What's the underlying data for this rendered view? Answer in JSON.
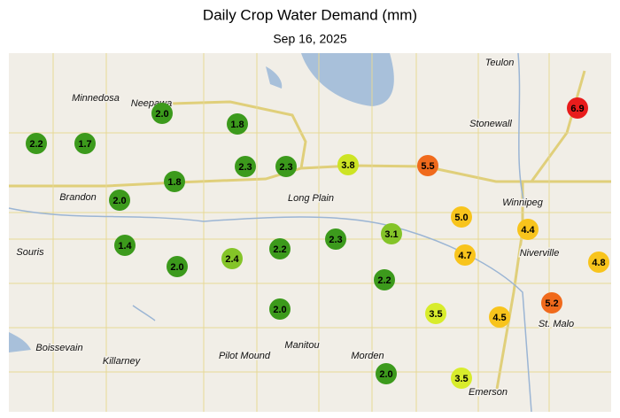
{
  "title": "Daily Crop Water Demand (mm)",
  "subtitle": "Sep 16, 2025",
  "places": [
    "Teulon",
    "Minnedosa",
    "Neepawa",
    "Stonewall",
    "Winnipeg",
    "Brandon",
    "Long Plain",
    "Souris",
    "Niverville",
    "St. Malo",
    "Boissevain",
    "Killarney",
    "Pilot Mound",
    "Manitou",
    "Morden",
    "Emerson"
  ],
  "stations": [
    {
      "value": 2.2,
      "color": "#3c9a1c"
    },
    {
      "value": 1.7,
      "color": "#3c9a1c"
    },
    {
      "value": 2,
      "label": "2.0",
      "color": "#3c9a1c"
    },
    {
      "value": 1.8,
      "color": "#3c9a1c"
    },
    {
      "value": 2.3,
      "color": "#3c9a1c"
    },
    {
      "value": 2.3,
      "color": "#3c9a1c"
    },
    {
      "value": 3.8,
      "color": "#cde424"
    },
    {
      "value": 5.5,
      "color": "#f06a1c"
    },
    {
      "value": 6.9,
      "color": "#e81c1c"
    },
    {
      "value": 1.8,
      "color": "#3c9a1c"
    },
    {
      "value": 2,
      "label": "2.0",
      "color": "#3c9a1c"
    },
    {
      "value": 5,
      "label": "5.0",
      "color": "#f8c41c"
    },
    {
      "value": 4.4,
      "color": "#f8c41c"
    },
    {
      "value": 1.4,
      "color": "#3c9a1c"
    },
    {
      "value": 2,
      "label": "2.0",
      "color": "#3c9a1c"
    },
    {
      "value": 2.4,
      "color": "#84c428"
    },
    {
      "value": 2.2,
      "color": "#3c9a1c"
    },
    {
      "value": 2.3,
      "color": "#3c9a1c"
    },
    {
      "value": 3.1,
      "color": "#84c428"
    },
    {
      "value": 4.7,
      "color": "#f8c41c"
    },
    {
      "value": 4.8,
      "color": "#f8c41c"
    },
    {
      "value": 2.2,
      "color": "#3c9a1c"
    },
    {
      "value": 2,
      "label": "2.0",
      "color": "#3c9a1c"
    },
    {
      "value": 3.5,
      "color": "#d8ec2c"
    },
    {
      "value": 4.5,
      "color": "#f8c41c"
    },
    {
      "value": 5.2,
      "color": "#f06a1c"
    },
    {
      "value": 2,
      "label": "2.0",
      "color": "#3c9a1c"
    },
    {
      "value": 3.5,
      "color": "#d8ec2c"
    }
  ]
}
